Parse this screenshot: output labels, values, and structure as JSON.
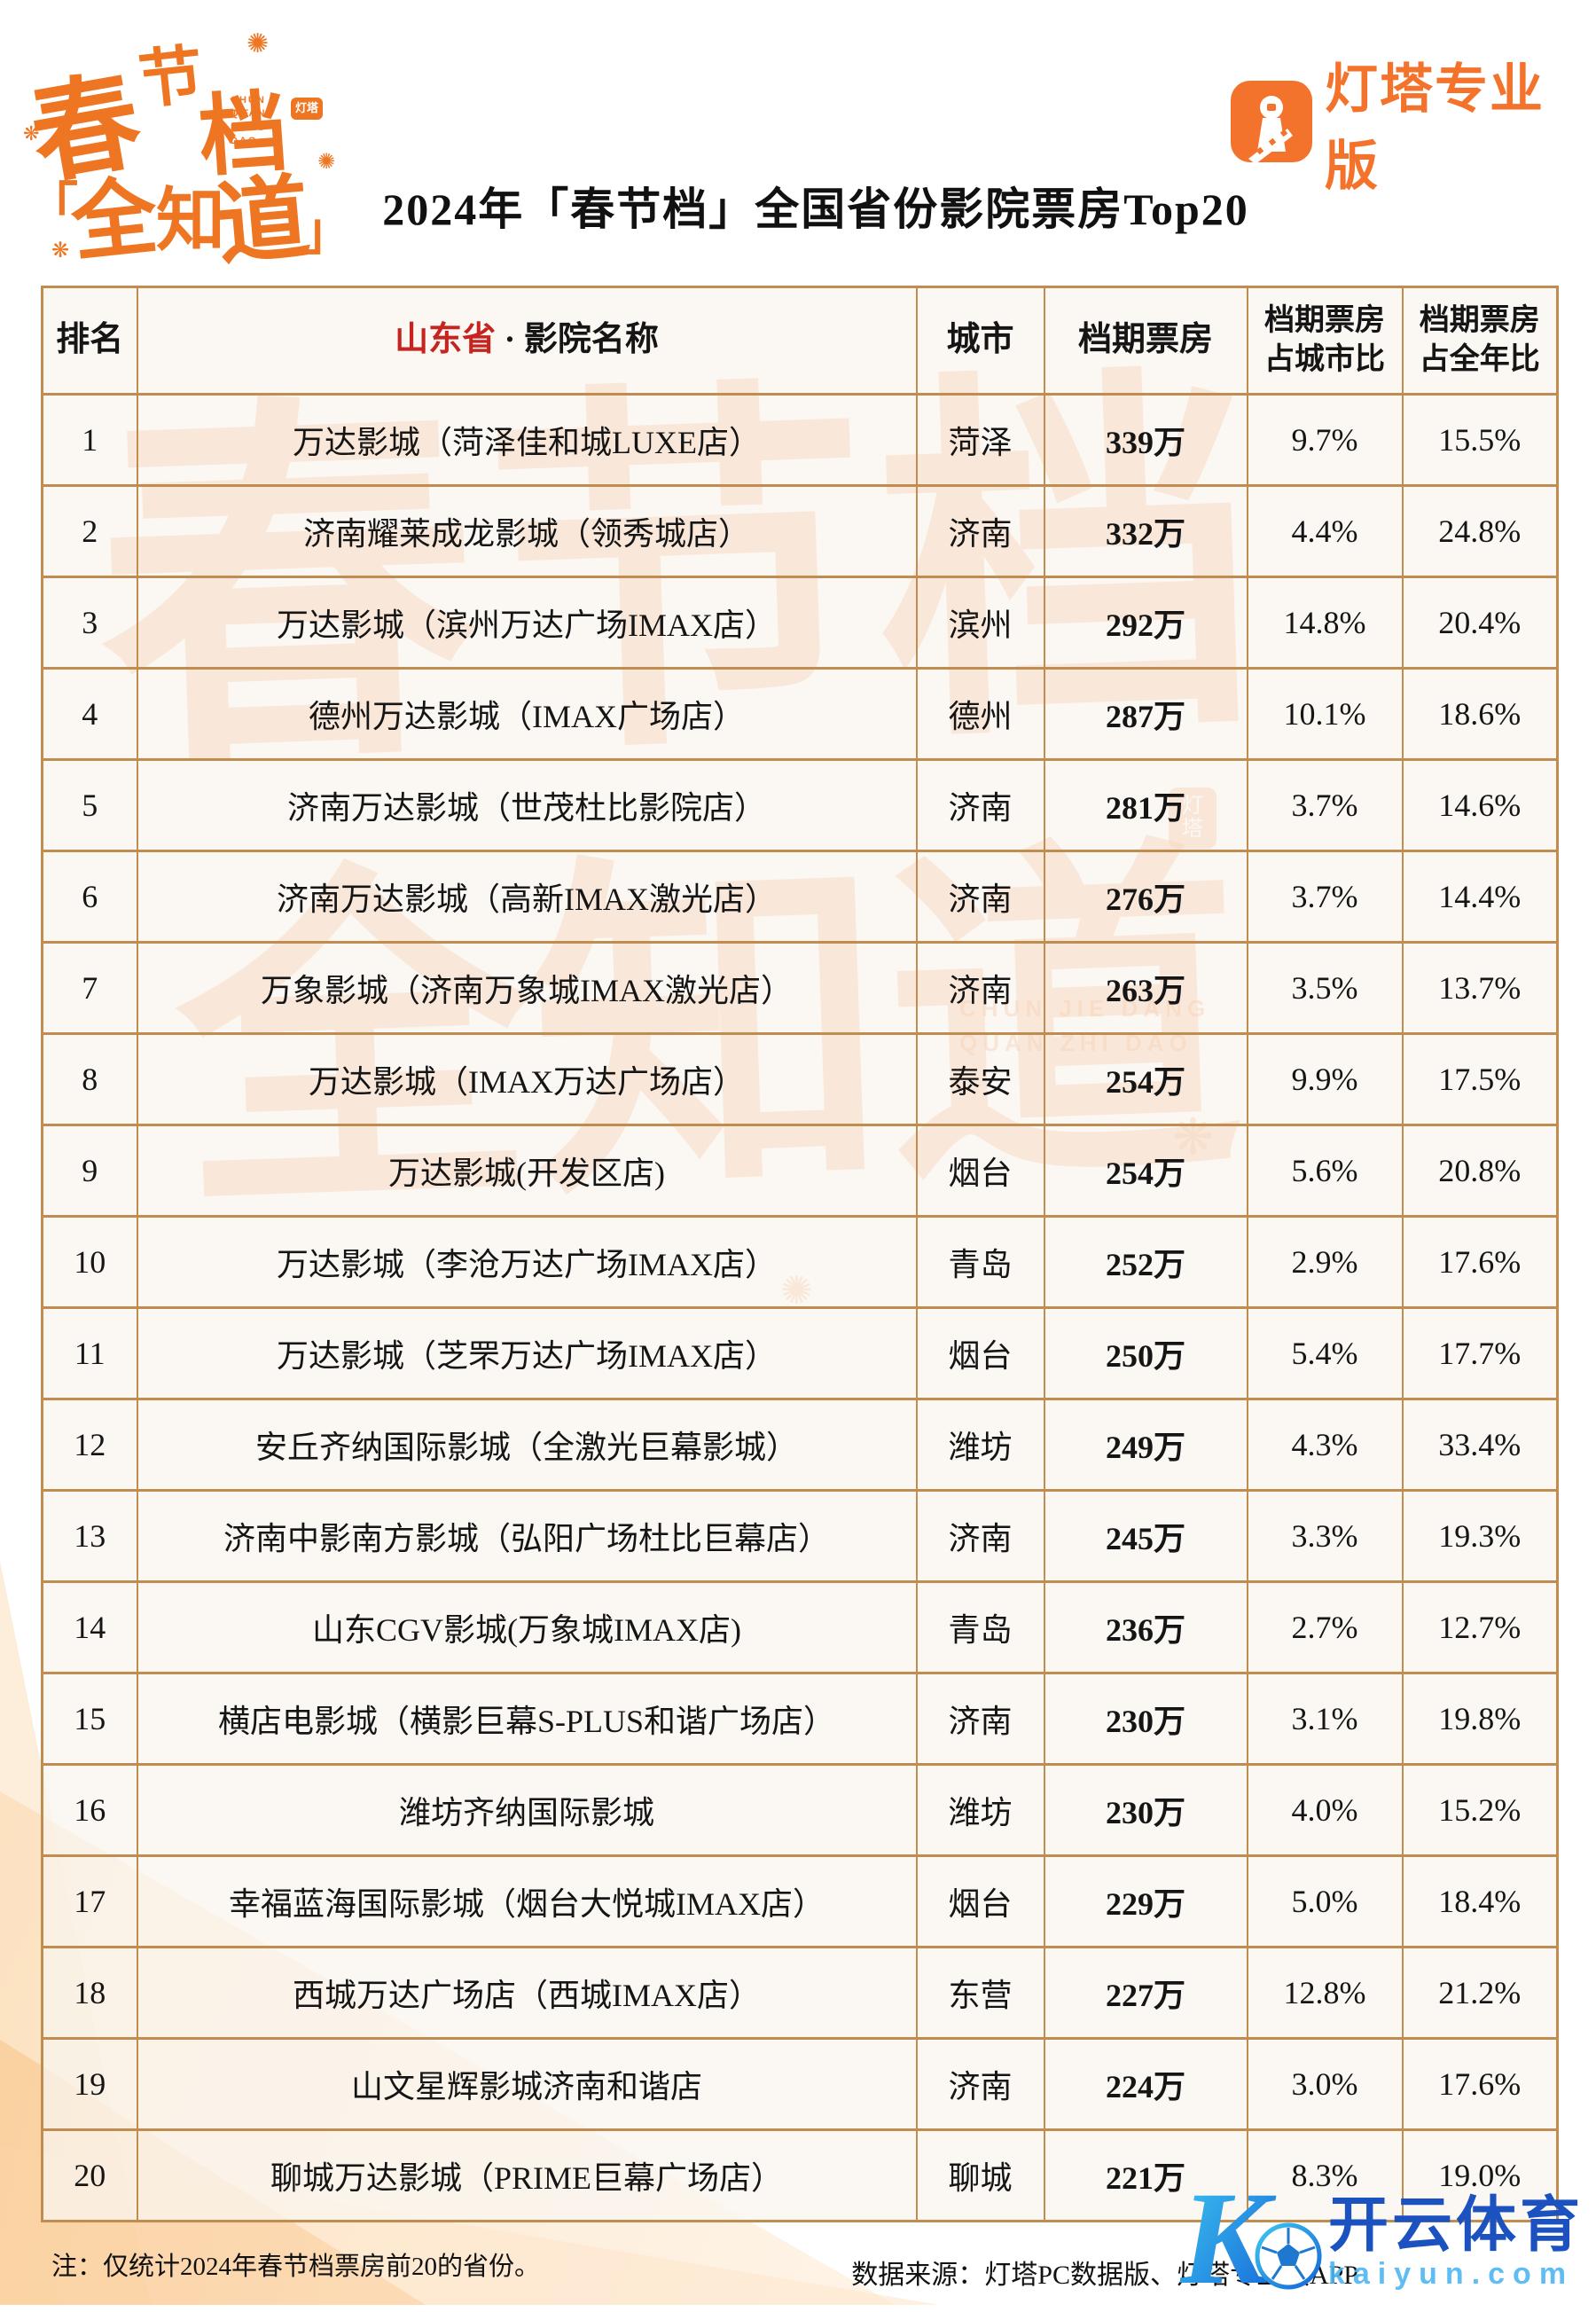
{
  "page": {
    "title": "2024年「春节档」全国省份影院票房Top20"
  },
  "brand": {
    "spring_logo": {
      "c0": "春",
      "c1": "节",
      "c2": "档",
      "c3": "「",
      "c4": "全",
      "c5": "知",
      "c6": "道",
      "c7": "」",
      "caption1": "CHUN JIE DANG",
      "caption2": "QUAN ZHI DAO",
      "seal": "灯塔",
      "sparkle": "✺"
    },
    "dengta_label": "灯塔专业版"
  },
  "table": {
    "headers": {
      "rank": "排名",
      "province": "山东省",
      "separator": " · ",
      "cinema": "影院名称",
      "city": "城市",
      "box": "档期票房",
      "city_share_l1": "档期票房",
      "city_share_l2": "占城市比",
      "year_share_l1": "档期票房",
      "year_share_l2": "占全年比"
    }
  },
  "chart_data": {
    "type": "table",
    "title": "2024年「春节档」全国省份影院票房Top20",
    "columns": [
      "排名",
      "山东省·影院名称",
      "城市",
      "档期票房",
      "档期票房占城市比",
      "档期票房占全年比"
    ],
    "rows": [
      [
        "1",
        "万达影城（菏泽佳和城LUXE店）",
        "菏泽",
        "339万",
        "9.7%",
        "15.5%"
      ],
      [
        "2",
        "济南耀莱成龙影城（领秀城店）",
        "济南",
        "332万",
        "4.4%",
        "24.8%"
      ],
      [
        "3",
        "万达影城（滨州万达广场IMAX店）",
        "滨州",
        "292万",
        "14.8%",
        "20.4%"
      ],
      [
        "4",
        "德州万达影城（IMAX广场店）",
        "德州",
        "287万",
        "10.1%",
        "18.6%"
      ],
      [
        "5",
        "济南万达影城（世茂杜比影院店）",
        "济南",
        "281万",
        "3.7%",
        "14.6%"
      ],
      [
        "6",
        "济南万达影城（高新IMAX激光店）",
        "济南",
        "276万",
        "3.7%",
        "14.4%"
      ],
      [
        "7",
        "万象影城（济南万象城IMAX激光店）",
        "济南",
        "263万",
        "3.5%",
        "13.7%"
      ],
      [
        "8",
        "万达影城（IMAX万达广场店）",
        "泰安",
        "254万",
        "9.9%",
        "17.5%"
      ],
      [
        "9",
        "万达影城(开发区店)",
        "烟台",
        "254万",
        "5.6%",
        "20.8%"
      ],
      [
        "10",
        "万达影城（李沧万达广场IMAX店）",
        "青岛",
        "252万",
        "2.9%",
        "17.6%"
      ],
      [
        "11",
        "万达影城（芝罘万达广场IMAX店）",
        "烟台",
        "250万",
        "5.4%",
        "17.7%"
      ],
      [
        "12",
        "安丘齐纳国际影城（全激光巨幕影城）",
        "潍坊",
        "249万",
        "4.3%",
        "33.4%"
      ],
      [
        "13",
        "济南中影南方影城（弘阳广场杜比巨幕店）",
        "济南",
        "245万",
        "3.3%",
        "19.3%"
      ],
      [
        "14",
        "山东CGV影城(万象城IMAX店)",
        "青岛",
        "236万",
        "2.7%",
        "12.7%"
      ],
      [
        "15",
        "横店电影城（横影巨幕S-PLUS和谐广场店）",
        "济南",
        "230万",
        "3.1%",
        "19.8%"
      ],
      [
        "16",
        "潍坊齐纳国际影城",
        "潍坊",
        "230万",
        "4.0%",
        "15.2%"
      ],
      [
        "17",
        "幸福蓝海国际影城（烟台大悦城IMAX店）",
        "烟台",
        "229万",
        "5.0%",
        "18.4%"
      ],
      [
        "18",
        "西城万达广场店（西城IMAX店）",
        "东营",
        "227万",
        "12.8%",
        "21.2%"
      ],
      [
        "19",
        "山文星辉影城济南和谐店",
        "济南",
        "224万",
        "3.0%",
        "17.6%"
      ],
      [
        "20",
        "聊城万达影城（PRIME巨幕广场店）",
        "聊城",
        "221万",
        "8.3%",
        "19.0%"
      ]
    ],
    "note": "注：仅统计2024年春节档票房前20的省份。",
    "source": "数据来源：灯塔PC数据版、灯塔专业版APP"
  },
  "footer": {
    "note": "注：仅统计2024年春节档票房前20的省份。",
    "source": "数据来源：灯塔PC数据版、灯塔专业版APP"
  },
  "watermark": {
    "bg_line1": "春节档",
    "bg_line2": "全知道",
    "bg_caption1": "CHUN JIE DANG",
    "bg_caption2": "QUAN ZHI DAO",
    "bg_seal": "灯塔",
    "kaiyun_name": "开云体育",
    "kaiyun_domain": "kaiyun.com"
  },
  "colors": {
    "accent_orange": "#ee7623",
    "logo_orange": "#f4732c",
    "red": "#c5241f",
    "table_border": "#c08c4f",
    "kaiyun_blue_dark": "#1b52c0",
    "kaiyun_blue_light": "#4fb6f2"
  }
}
